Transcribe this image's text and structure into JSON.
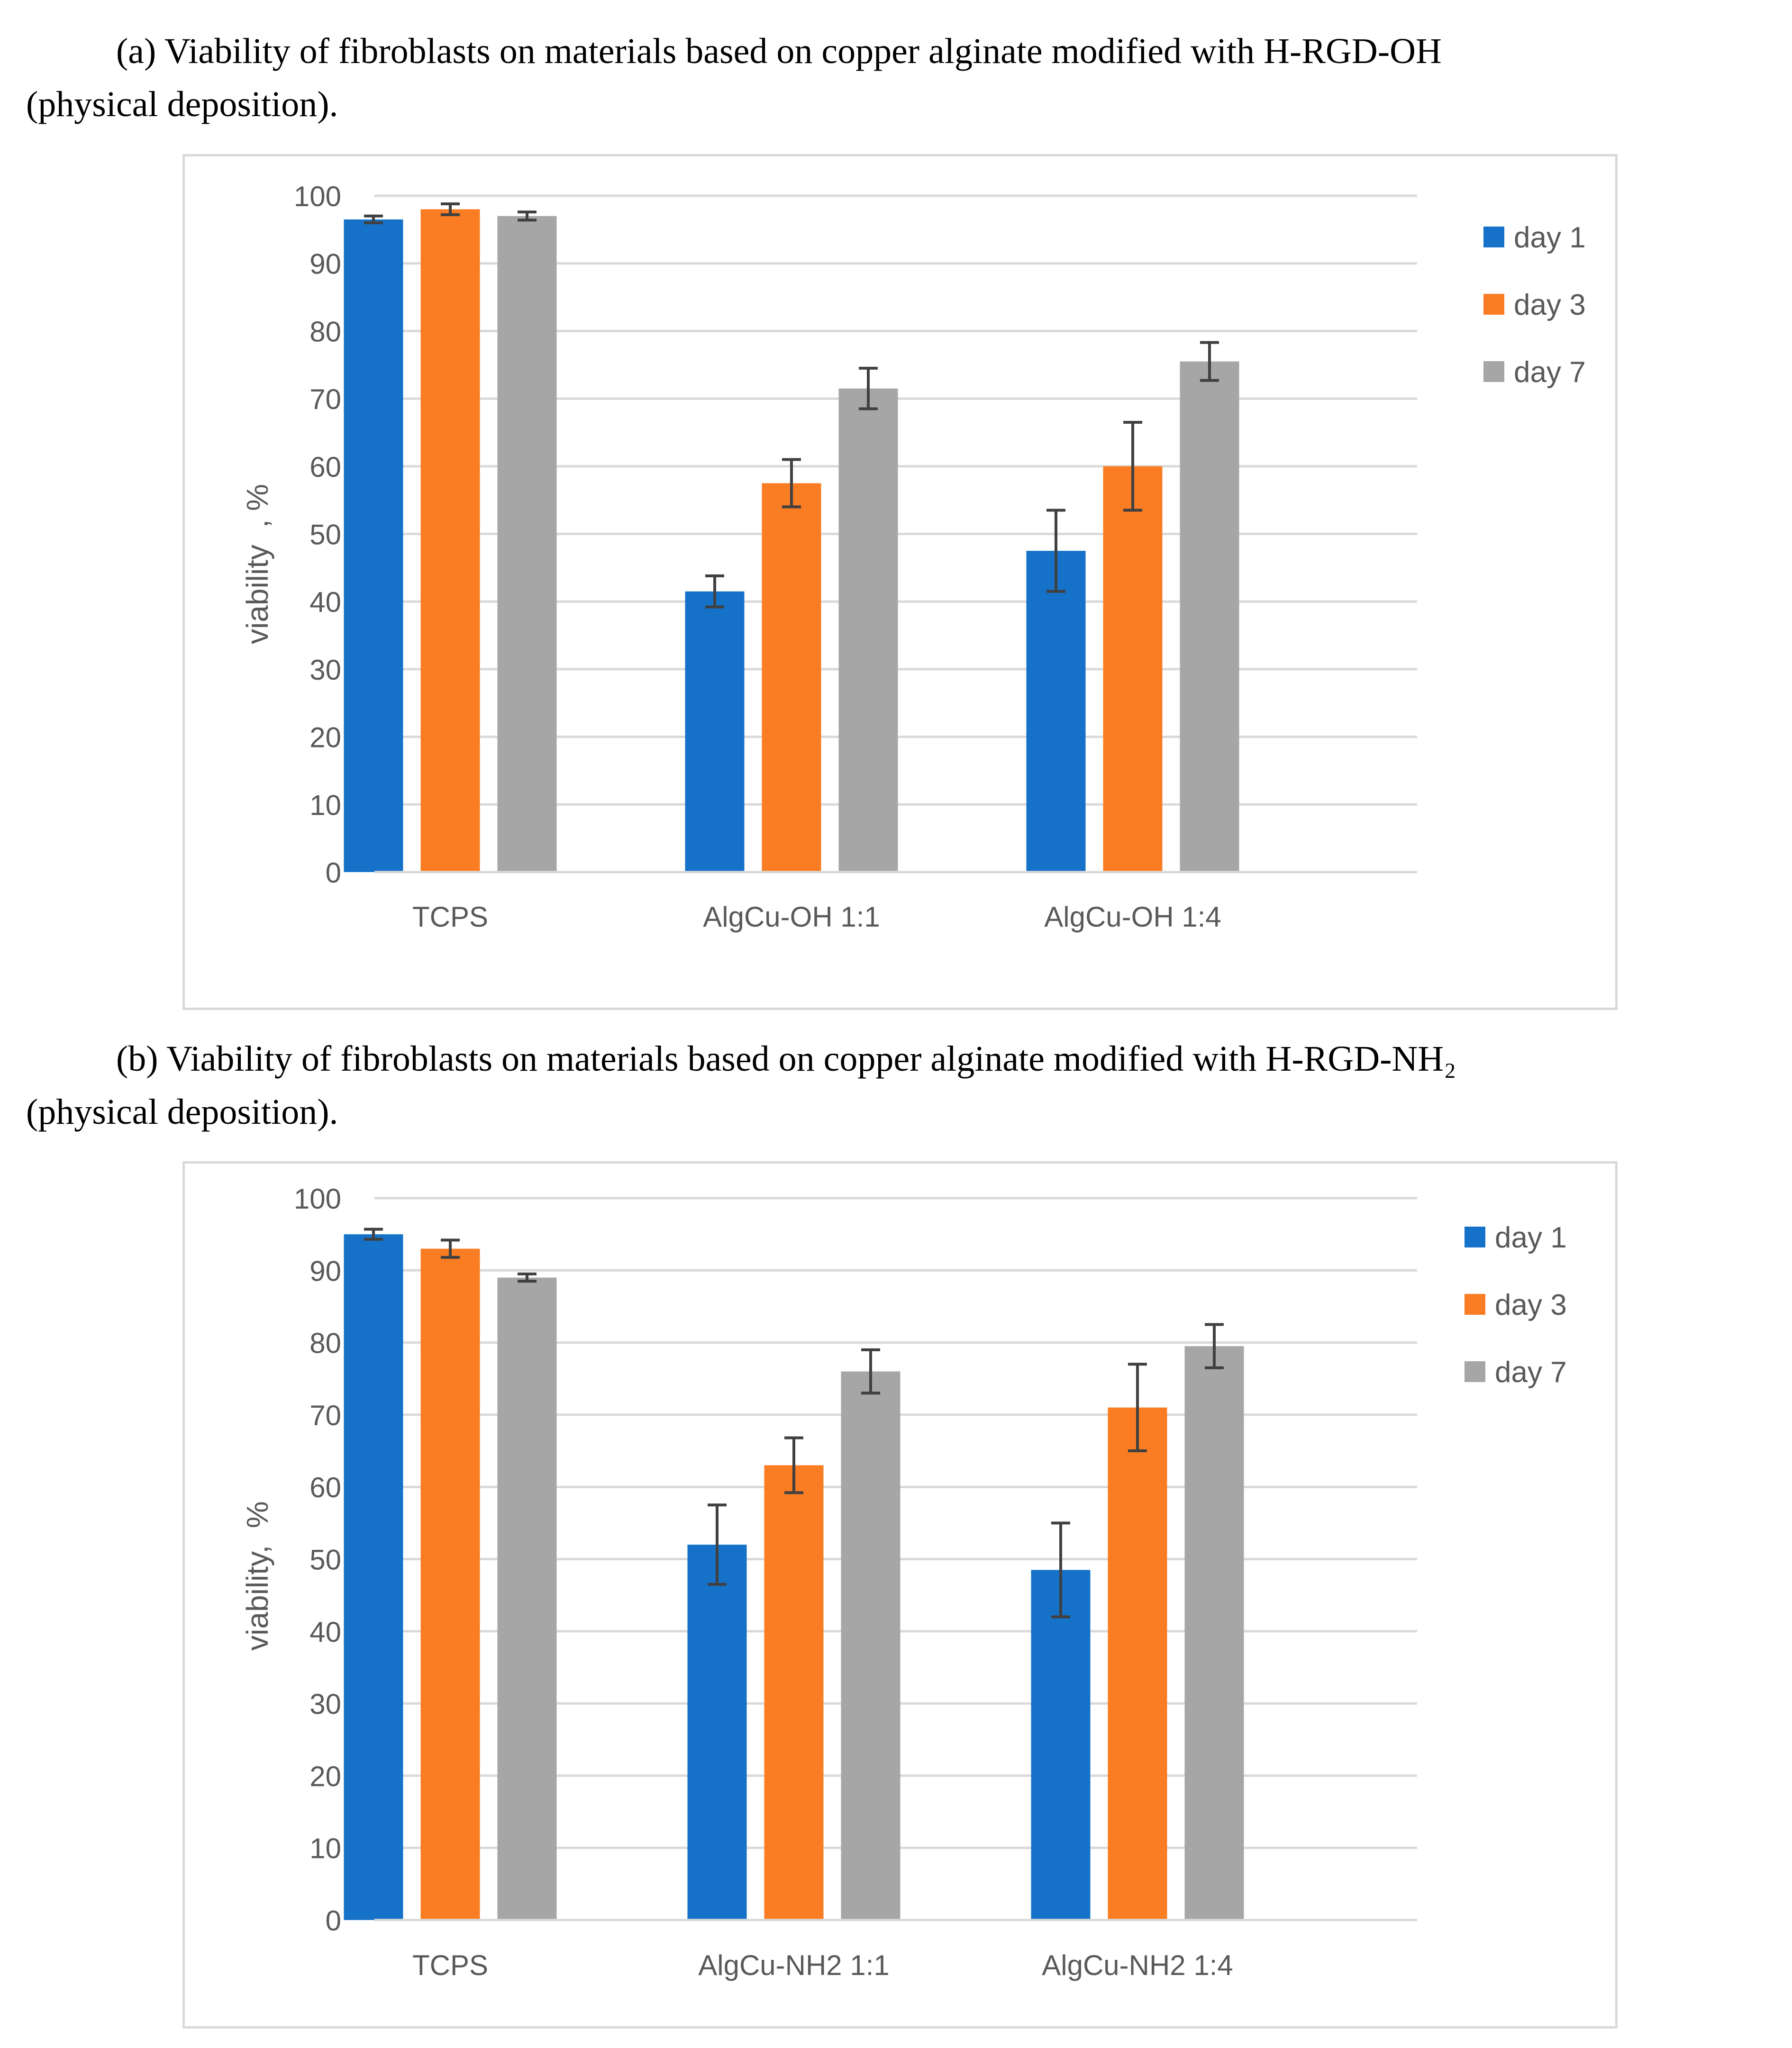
{
  "panels": [
    {
      "caption_lines": [
        "(a) Viability of fibroblasts on materials based on copper alginate modified with H-RGD-OH",
        "(physical deposition)."
      ]
    },
    {
      "caption_lines": [
        "(b) Viability of fibroblasts on materials based on copper alginate modified with H-RGD-NH₂",
        "(physical deposition)."
      ]
    }
  ],
  "colors": {
    "day1": "#1672c9",
    "day3": "#fa7d24",
    "day7": "#a6a6a6",
    "error": "#404040",
    "grid": "#d9d9d9",
    "axis_text": "#595959"
  },
  "chart_data": [
    {
      "type": "bar",
      "title": "",
      "xlabel": "",
      "ylabel": "viability  , %",
      "ylim": [
        0,
        100
      ],
      "yticks": [
        "0",
        "10",
        "20",
        "30",
        "40",
        "50",
        "60",
        "70",
        "80",
        "90",
        "100"
      ],
      "categories": [
        "TCPS",
        "AlgCu-OH 1:1",
        "AlgCu-OH 1:4"
      ],
      "legend_position": "right",
      "series": [
        {
          "name": "day 1",
          "values": [
            96.5,
            41.5,
            47.5
          ],
          "errors": [
            0.5,
            2.3,
            6.0
          ]
        },
        {
          "name": "day 3",
          "values": [
            98.0,
            57.5,
            60.0
          ],
          "errors": [
            0.8,
            3.5,
            6.5
          ]
        },
        {
          "name": "day 7",
          "values": [
            97.0,
            71.5,
            75.5
          ],
          "errors": [
            0.6,
            3.0,
            2.8
          ]
        }
      ]
    },
    {
      "type": "bar",
      "title": "",
      "xlabel": "",
      "ylabel": "viability,  %",
      "ylim": [
        0,
        100
      ],
      "yticks": [
        "0",
        "10",
        "20",
        "30",
        "40",
        "50",
        "60",
        "70",
        "80",
        "90",
        "100"
      ],
      "categories": [
        "TCPS",
        "AlgCu-NH2 1:1",
        "AlgCu-NH2 1:4"
      ],
      "legend_position": "right",
      "series": [
        {
          "name": "day 1",
          "values": [
            95.0,
            52.0,
            48.5
          ],
          "errors": [
            0.7,
            5.5,
            6.5
          ]
        },
        {
          "name": "day 3",
          "values": [
            93.0,
            63.0,
            71.0
          ],
          "errors": [
            1.2,
            3.8,
            6.0
          ]
        },
        {
          "name": "day 7",
          "values": [
            89.0,
            76.0,
            79.5
          ],
          "errors": [
            0.5,
            3.0,
            3.0
          ]
        }
      ]
    }
  ]
}
